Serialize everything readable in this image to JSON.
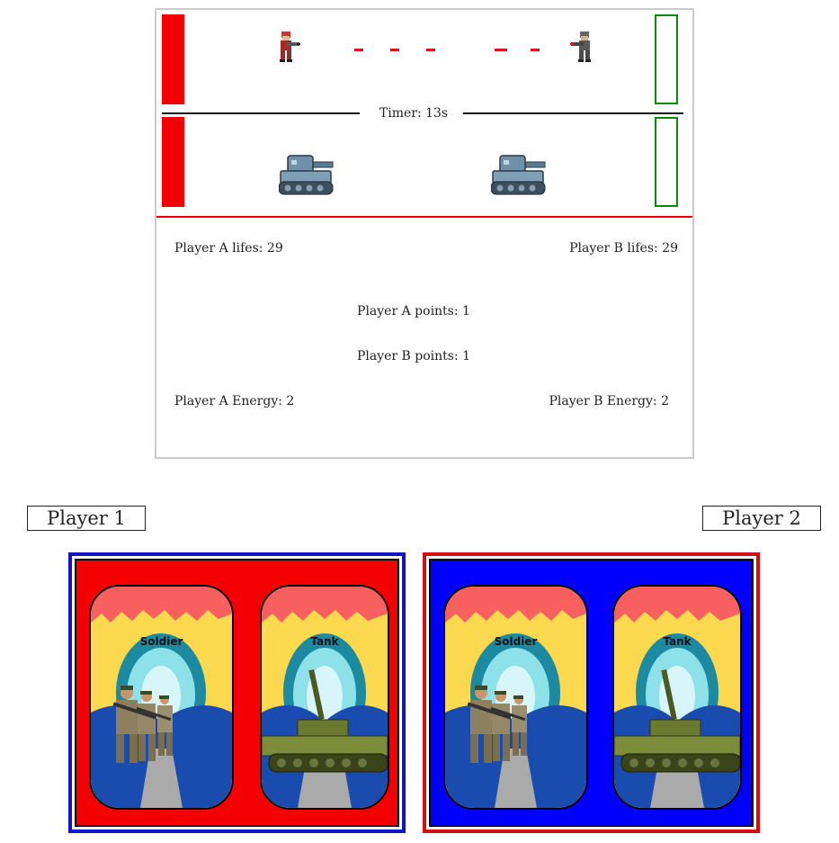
{
  "board": {
    "timer": "Timer: 13s",
    "stats": {
      "a_lifes": "Player A lifes: 29",
      "b_lifes": "Player B lifes: 29",
      "a_points": "Player A points: 1",
      "b_points": "Player B points: 1",
      "a_energy": "Player A Energy: 2",
      "b_energy": "Player B Energy: 2"
    },
    "colors": {
      "player_a_base": "#f20000",
      "player_b_base": "#0a8a0a",
      "separator": "#e00000"
    }
  },
  "players": [
    {
      "label": "Player 1",
      "hand_color": "#f40000",
      "border_color": "#1016c8",
      "cards": [
        {
          "title": "Soldier",
          "icon": "soldier-card-art"
        },
        {
          "title": "Tank",
          "icon": "tank-card-art"
        }
      ]
    },
    {
      "label": "Player 2",
      "hand_color": "#0000ff",
      "border_color": "#d01010",
      "cards": [
        {
          "title": "Soldier",
          "icon": "soldier-card-art"
        },
        {
          "title": "Tank",
          "icon": "tank-card-art"
        }
      ]
    }
  ]
}
